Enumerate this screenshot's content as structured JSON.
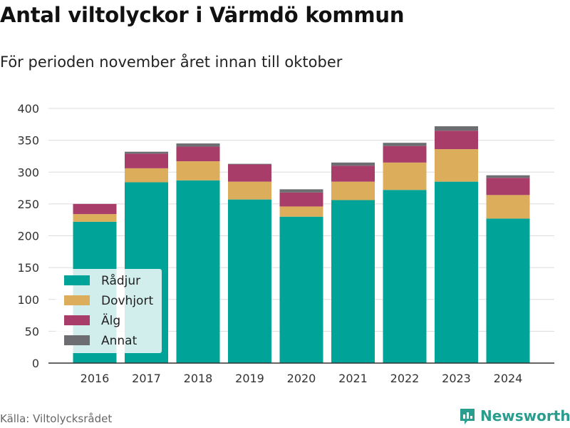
{
  "header": {
    "title": "Antal viltolyckor i Värmdö kommun",
    "subtitle": "För perioden november året innan till oktober"
  },
  "footer": {
    "source": "Källa: Viltolycksrådet",
    "brand": "Newsworthy"
  },
  "chart_data": {
    "type": "bar",
    "stacked": true,
    "categories": [
      "2016",
      "2017",
      "2018",
      "2019",
      "2020",
      "2021",
      "2022",
      "2023",
      "2024"
    ],
    "series": [
      {
        "name": "Rådjur",
        "color": "#00a398",
        "values": [
          222,
          284,
          287,
          257,
          230,
          256,
          272,
          285,
          227
        ]
      },
      {
        "name": "Dovhjort",
        "color": "#dcae5c",
        "values": [
          12,
          22,
          30,
          28,
          16,
          29,
          43,
          51,
          37
        ]
      },
      {
        "name": "Älg",
        "color": "#a83d6a",
        "values": [
          16,
          23,
          23,
          27,
          22,
          25,
          26,
          29,
          27
        ]
      },
      {
        "name": "Annat",
        "color": "#6d6e72",
        "values": [
          0,
          3,
          5,
          1,
          5,
          5,
          5,
          7,
          4
        ]
      }
    ],
    "ylim": [
      0,
      400
    ],
    "yticks": [
      0,
      50,
      100,
      150,
      200,
      250,
      300,
      350,
      400
    ],
    "grid": true,
    "legend": "bottom-left"
  }
}
